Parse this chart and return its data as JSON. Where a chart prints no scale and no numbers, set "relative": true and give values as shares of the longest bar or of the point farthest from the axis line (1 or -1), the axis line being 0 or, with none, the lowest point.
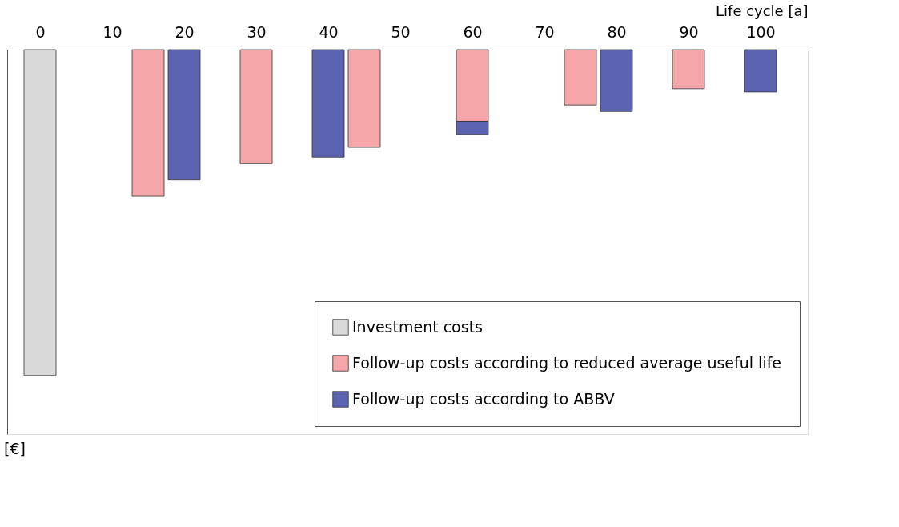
{
  "chart_data": {
    "type": "bar",
    "relative": true,
    "stacked": true,
    "xlabel": "Life cycle [a]",
    "annotations": [
      "[€]"
    ],
    "xlim": [
      -4,
      106
    ],
    "xticks": [
      0,
      10,
      20,
      30,
      40,
      50,
      60,
      70,
      80,
      90,
      100
    ],
    "x": [
      0,
      15,
      20,
      30,
      40,
      45,
      60,
      75,
      80,
      90,
      100
    ],
    "series": [
      {
        "name": "Investment costs",
        "color": "#d9d9d9",
        "values": [
          -1,
          null,
          null,
          null,
          null,
          null,
          null,
          null,
          null,
          null,
          null
        ]
      },
      {
        "name": "Follow-up costs according to reduced average useful life",
        "color": "#f4a6a8",
        "values": [
          null,
          -0.45,
          null,
          -0.35,
          null,
          -0.3,
          -0.22,
          -0.17,
          null,
          -0.12,
          null
        ]
      },
      {
        "name": "Follow-up costs according to ABBV",
        "color": "#5b63b0",
        "values": [
          null,
          null,
          -0.4,
          null,
          -0.33,
          null,
          -0.04,
          null,
          -0.19,
          null,
          -0.13
        ]
      }
    ],
    "legend": "bottom right",
    "grid": false
  }
}
